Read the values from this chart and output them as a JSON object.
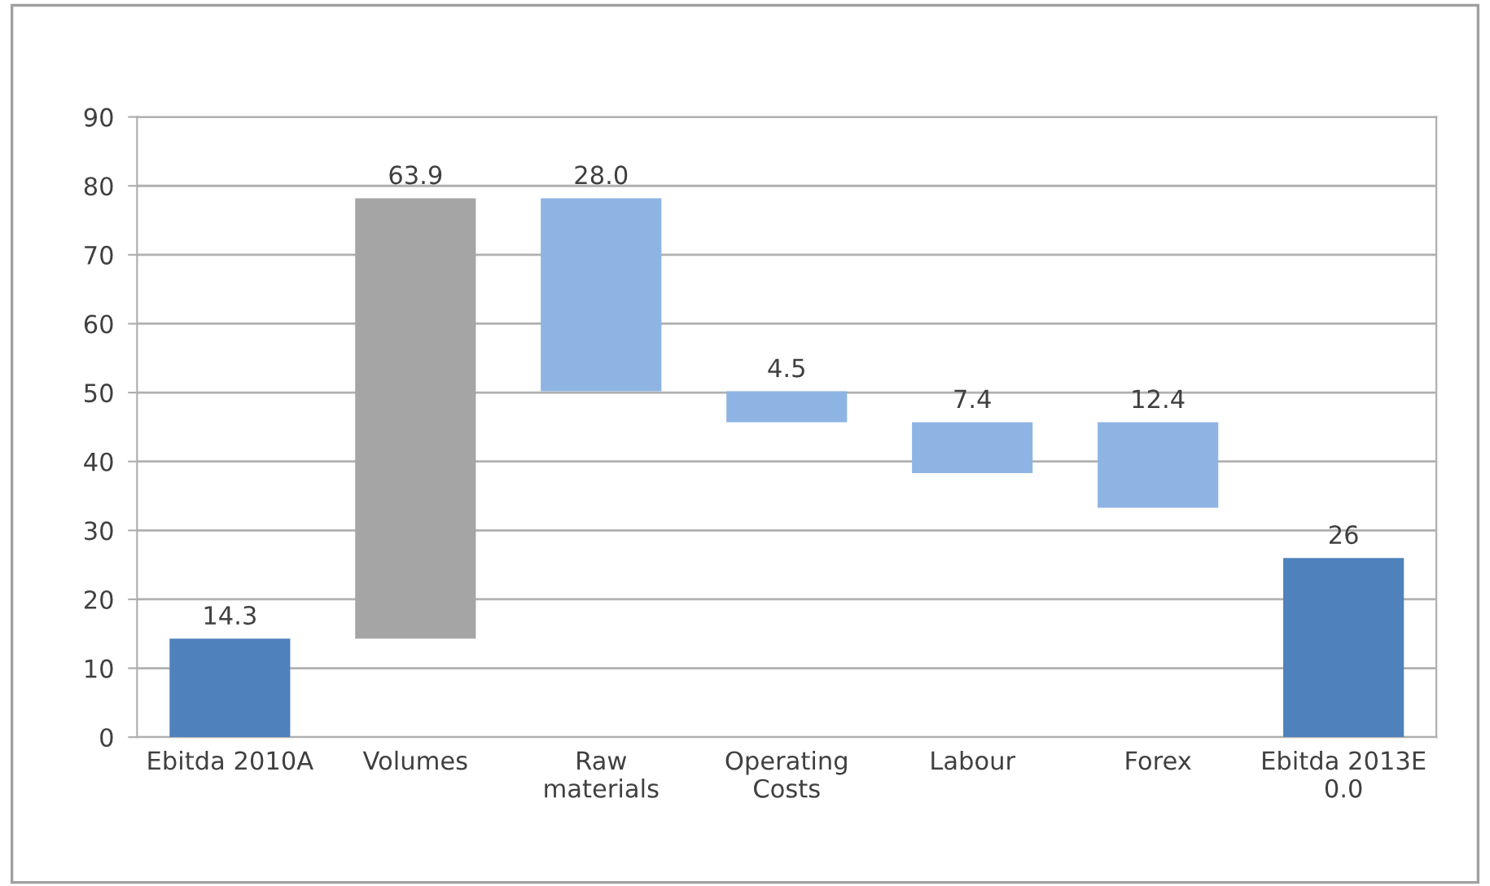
{
  "chart_data": {
    "type": "bar",
    "categories": [
      "Ebitda 2010A",
      "Volumes",
      "Raw materials",
      "Operating Costs",
      "Labour",
      "Forex",
      "Ebitda 2013E 0.0"
    ],
    "values": [
      14.3,
      63.9,
      28.0,
      4.5,
      7.4,
      12.4,
      26
    ],
    "base": [
      0,
      14.3,
      50.2,
      45.7,
      38.3,
      33.3,
      0
    ],
    "colors": [
      "#4f81bd",
      "#a5a5a5",
      "#8eb4e3",
      "#8eb4e3",
      "#8eb4e3",
      "#8eb4e3",
      "#4f81bd"
    ],
    "value_labels": [
      "14.3",
      "63.9",
      "28.0",
      "4.5",
      "7.4",
      "12.4",
      "26"
    ],
    "ylim": [
      0,
      90
    ],
    "yticks": [
      0,
      10,
      20,
      30,
      40,
      50,
      60,
      70,
      80,
      90
    ],
    "grid": "y"
  }
}
